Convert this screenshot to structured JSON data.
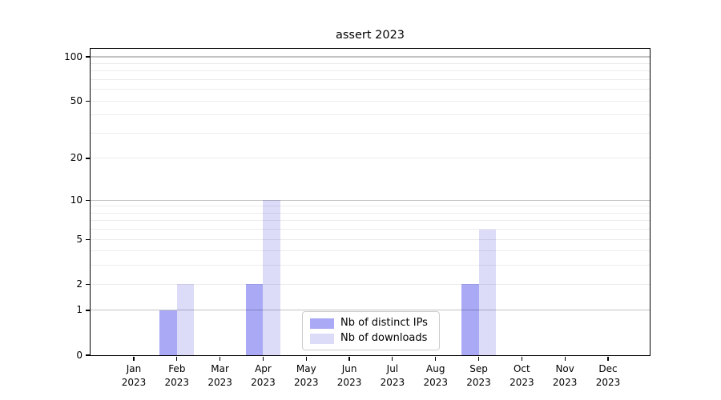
{
  "chart_data": {
    "type": "bar",
    "title": "assert 2023",
    "x": {
      "categories": [
        "Jan",
        "Feb",
        "Mar",
        "Apr",
        "May",
        "Jun",
        "Jul",
        "Aug",
        "Sep",
        "Oct",
        "Nov",
        "Dec"
      ],
      "year_label": "2023"
    },
    "series": [
      {
        "name": "Nb of distinct IPs",
        "color": "#a9a9f6",
        "values": [
          0,
          1,
          0,
          2,
          0,
          0,
          0,
          0,
          2,
          0,
          0,
          0
        ]
      },
      {
        "name": "Nb of downloads",
        "color": "#dcdcf8",
        "values": [
          0,
          2,
          0,
          10,
          0,
          0,
          0,
          0,
          6,
          0,
          0,
          0
        ]
      }
    ],
    "y_axis": {
      "scale": "log1p",
      "labeled_ticks": [
        0,
        1,
        2,
        5,
        10,
        20,
        50,
        100
      ],
      "minor_gridlines": [
        2,
        3,
        4,
        5,
        6,
        7,
        8,
        9,
        20,
        30,
        40,
        50,
        60,
        70,
        80,
        90
      ],
      "emphasized_gridlines": [
        1,
        10,
        100
      ],
      "ylim": [
        0,
        115
      ]
    },
    "legend": {
      "position": "lower center"
    },
    "grid": true,
    "background_color": "#ffffff"
  }
}
